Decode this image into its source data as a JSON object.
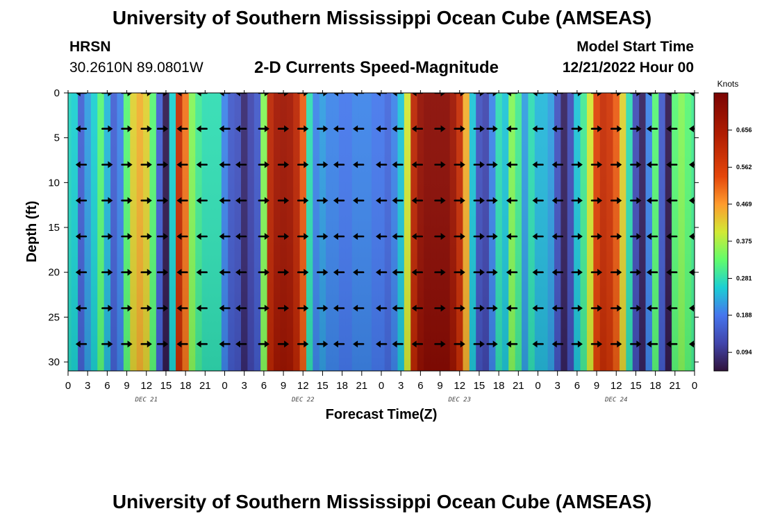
{
  "header": {
    "title": "University of Southern Mississippi Ocean Cube (AMSEAS)",
    "station": "HRSN",
    "coords": "30.2610N  89.0801W",
    "subtitle": "2-D Currents Speed-Magnitude",
    "start_label": "Model Start Time",
    "start_value": "12/21/2022 Hour 00"
  },
  "footer": {
    "title": "University of Southern Mississippi Ocean Cube (AMSEAS)"
  },
  "chart_data": {
    "type": "heatmap",
    "title": "2-D Currents Speed-Magnitude",
    "xlabel": "Forecast Time(Z)",
    "ylabel": "Depth (ft)",
    "x_unit": "hours since model start",
    "xlim": [
      0,
      96
    ],
    "ylim": [
      31,
      0
    ],
    "x_ticks": [
      {
        "h": 0,
        "label": "0"
      },
      {
        "h": 3,
        "label": "3"
      },
      {
        "h": 6,
        "label": "6"
      },
      {
        "h": 9,
        "label": "9"
      },
      {
        "h": 12,
        "label": "12"
      },
      {
        "h": 15,
        "label": "15"
      },
      {
        "h": 18,
        "label": "18"
      },
      {
        "h": 21,
        "label": "21"
      },
      {
        "h": 24,
        "label": "0"
      },
      {
        "h": 27,
        "label": "3"
      },
      {
        "h": 30,
        "label": "6"
      },
      {
        "h": 33,
        "label": "9"
      },
      {
        "h": 36,
        "label": "12"
      },
      {
        "h": 39,
        "label": "15"
      },
      {
        "h": 42,
        "label": "18"
      },
      {
        "h": 45,
        "label": "21"
      },
      {
        "h": 48,
        "label": "0"
      },
      {
        "h": 51,
        "label": "3"
      },
      {
        "h": 54,
        "label": "6"
      },
      {
        "h": 57,
        "label": "9"
      },
      {
        "h": 60,
        "label": "12"
      },
      {
        "h": 63,
        "label": "15"
      },
      {
        "h": 66,
        "label": "18"
      },
      {
        "h": 69,
        "label": "21"
      },
      {
        "h": 72,
        "label": "0"
      },
      {
        "h": 75,
        "label": "3"
      },
      {
        "h": 78,
        "label": "6"
      },
      {
        "h": 81,
        "label": "9"
      },
      {
        "h": 84,
        "label": "12"
      },
      {
        "h": 87,
        "label": "15"
      },
      {
        "h": 90,
        "label": "18"
      },
      {
        "h": 93,
        "label": "21"
      },
      {
        "h": 96,
        "label": "0"
      }
    ],
    "y_ticks": [
      0,
      5,
      10,
      15,
      20,
      25,
      30
    ],
    "date_labels": [
      {
        "h": 12,
        "label": "DEC 21"
      },
      {
        "h": 36,
        "label": "DEC 22"
      },
      {
        "h": 60,
        "label": "DEC 23"
      },
      {
        "h": 84,
        "label": "DEC 24"
      }
    ],
    "colorbar": {
      "unit": "Knots",
      "min": 0.047,
      "max": 0.75,
      "ticks": [
        "0.094",
        "0.188",
        "0.281",
        "0.375",
        "0.469",
        "0.562",
        "0.656"
      ]
    },
    "speed_by_hour": [
      0.27,
      0.26,
      0.16,
      0.22,
      0.26,
      0.32,
      0.24,
      0.16,
      0.2,
      0.32,
      0.42,
      0.45,
      0.42,
      0.32,
      0.16,
      0.06,
      0.26,
      0.6,
      0.5,
      0.35,
      0.3,
      0.28,
      0.28,
      0.28,
      0.2,
      0.15,
      0.14,
      0.08,
      0.12,
      0.15,
      0.35,
      0.62,
      0.67,
      0.68,
      0.67,
      0.62,
      0.52,
      0.28,
      0.2,
      0.22,
      0.2,
      0.2,
      0.19,
      0.19,
      0.2,
      0.2,
      0.2,
      0.19,
      0.19,
      0.17,
      0.2,
      0.25,
      0.4,
      0.62,
      0.7,
      0.72,
      0.72,
      0.72,
      0.72,
      0.68,
      0.6,
      0.45,
      0.25,
      0.14,
      0.12,
      0.2,
      0.28,
      0.25,
      0.35,
      0.3,
      0.22,
      0.28,
      0.24,
      0.24,
      0.22,
      0.14,
      0.07,
      0.13,
      0.25,
      0.3,
      0.4,
      0.55,
      0.6,
      0.58,
      0.52,
      0.42,
      0.28,
      0.13,
      0.07,
      0.2,
      0.32,
      0.15,
      0.06,
      0.32,
      0.35,
      0.32,
      0.3
    ],
    "arrow_depths": [
      0,
      4,
      8,
      12,
      16,
      20,
      24,
      28
    ],
    "arrow_hours": [
      2,
      6,
      9,
      12,
      14.5,
      17.5,
      20.5,
      24,
      26.5,
      30,
      33,
      36,
      39,
      41.5,
      44.5,
      48,
      50.5,
      53.5,
      57,
      60,
      63,
      65,
      68,
      72,
      75,
      78,
      81,
      84,
      87,
      89.5,
      92.5,
      96
    ],
    "arrow_dirs": [
      -1,
      1,
      1,
      1,
      1,
      -1,
      -1,
      -1,
      -1,
      1,
      1,
      1,
      1,
      -1,
      -1,
      -1,
      -1,
      -1,
      1,
      1,
      1,
      1,
      -1,
      -1,
      -1,
      1,
      1,
      1,
      1,
      -1,
      -1,
      -1
    ]
  }
}
